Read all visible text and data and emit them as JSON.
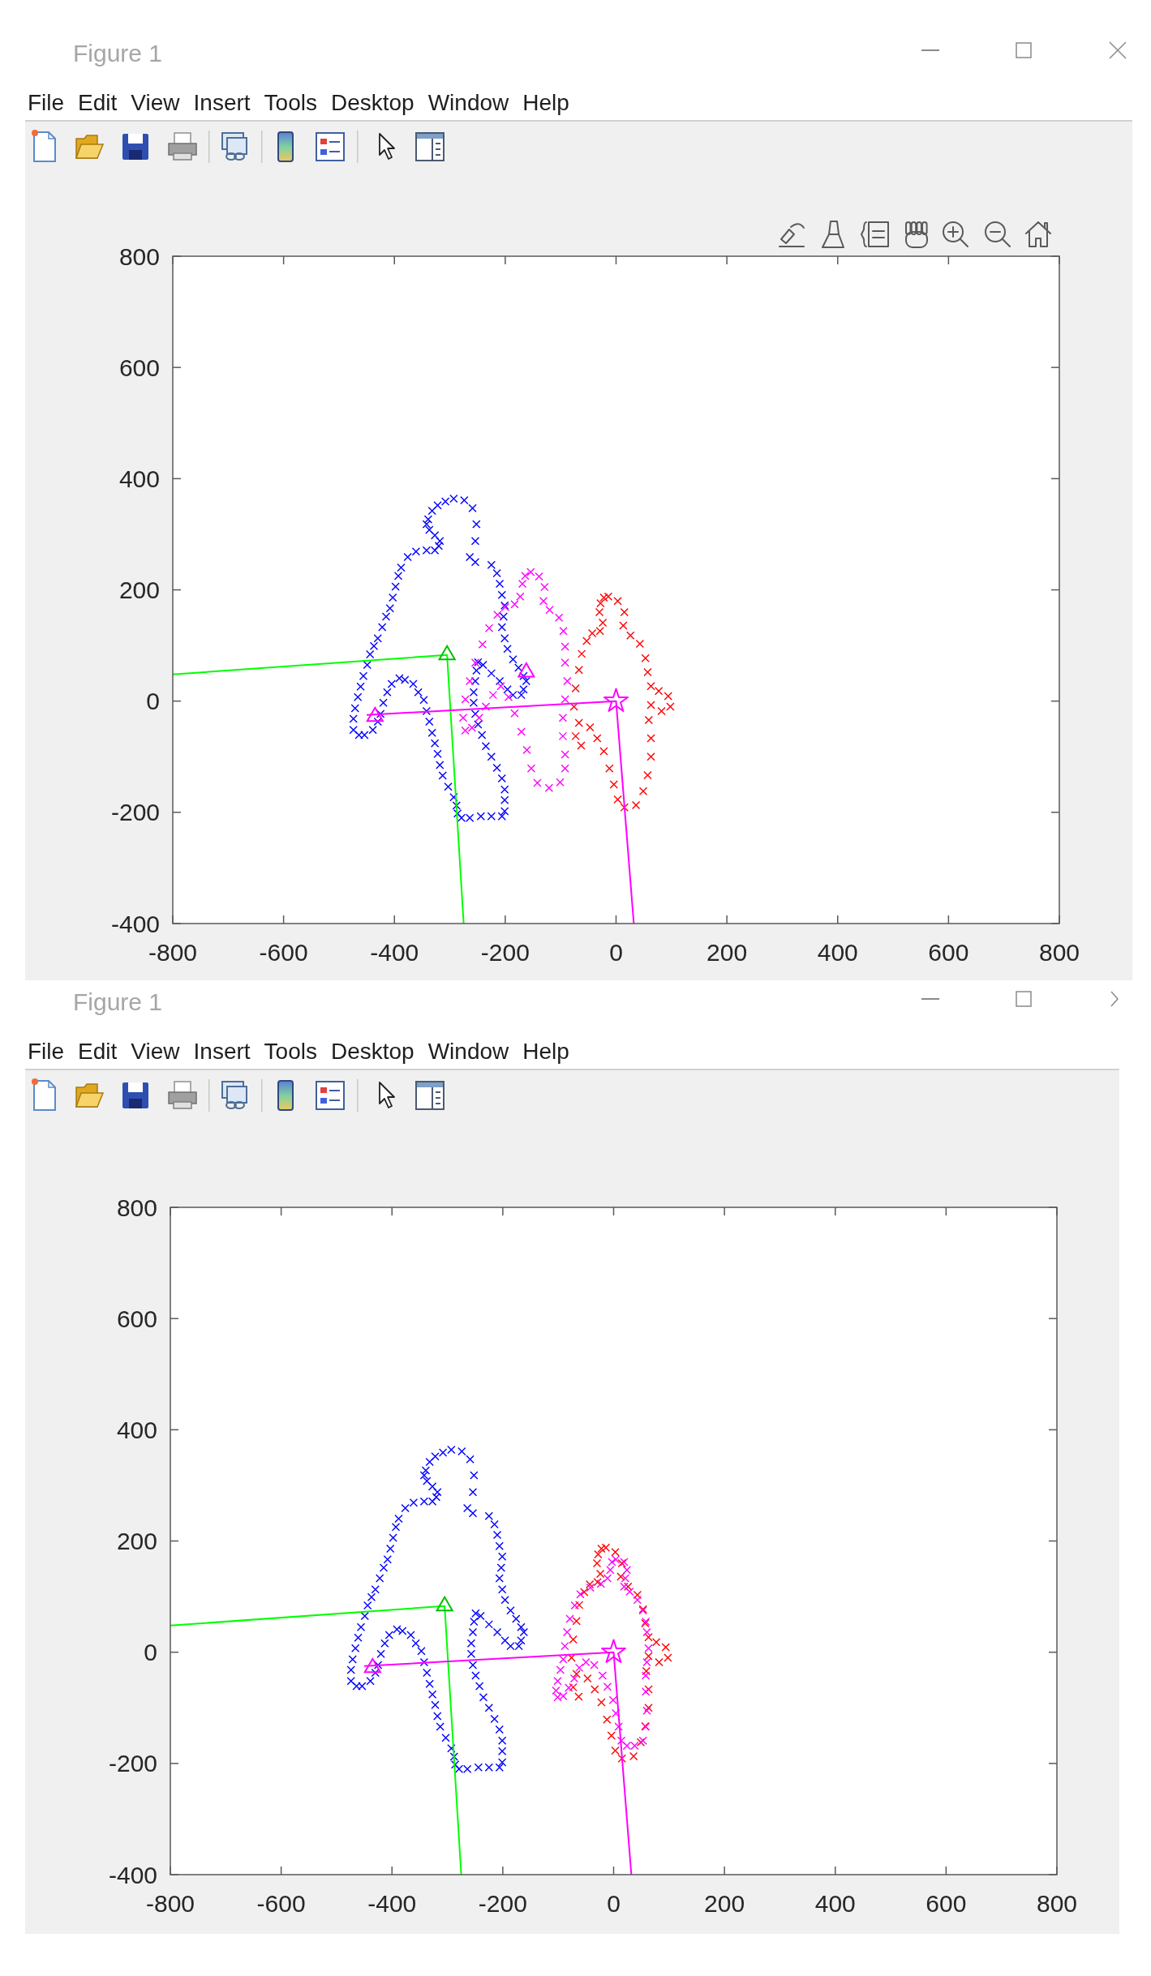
{
  "chart_data": [
    {
      "type": "scatter",
      "title": "Figure 1",
      "annotations": [
        "File",
        "Edit",
        "View",
        "Insert",
        "Tools",
        "Desktop",
        "Window",
        "Help"
      ],
      "xlim": [
        -800,
        800
      ],
      "xticks": [
        -800,
        -600,
        -400,
        -200,
        0,
        200,
        400,
        600,
        800
      ],
      "ylim": [
        -400,
        800
      ],
      "yticks": [
        -400,
        -200,
        0,
        200,
        400,
        600,
        800
      ],
      "marker": "cross",
      "series": [
        {
          "color": "#0000ff",
          "x": [
            -293,
            -274,
            -259,
            -252,
            -254,
            -264,
            -254,
            -225,
            -215,
            -210,
            -206,
            -201,
            -203,
            -206,
            -201,
            -196,
            -186,
            -176,
            -167,
            -162,
            -167,
            -171,
            -186,
            -196,
            -210,
            -225,
            -240,
            -249,
            -252,
            -254,
            -257,
            -257,
            -254,
            -249,
            -242,
            -235,
            -225,
            -215,
            -206,
            -201,
            -201,
            -201,
            -206,
            -225,
            -244,
            -264,
            -279,
            -286,
            -288,
            -293,
            -303,
            -313,
            -318,
            -322,
            -327,
            -332,
            -337,
            -342,
            -347,
            -357,
            -366,
            -381,
            -391,
            -405,
            -413,
            -420,
            -425,
            -430,
            -439,
            -454,
            -464,
            -474,
            -474,
            -471,
            -466,
            -461,
            -456,
            -449,
            -444,
            -437,
            -430,
            -422,
            -415,
            -408,
            -403,
            -398,
            -393,
            -388,
            -376,
            -361,
            -342,
            -327,
            -320,
            -318,
            -327,
            -337,
            -342,
            -339,
            -332,
            -322,
            -308
          ],
          "values": [
            364,
            361,
            347,
            318,
            288,
            259,
            250,
            245,
            230,
            211,
            191,
            172,
            152,
            133,
            113,
            94,
            75,
            60,
            45,
            36,
            21,
            11,
            11,
            21,
            36,
            50,
            65,
            70,
            55,
            36,
            16,
            -3,
            -23,
            -42,
            -61,
            -81,
            -100,
            -120,
            -139,
            -159,
            -178,
            -198,
            -207,
            -207,
            -207,
            -210,
            -210,
            -202,
            -188,
            -173,
            -154,
            -134,
            -115,
            -95,
            -76,
            -57,
            -37,
            -18,
            2,
            16,
            31,
            38,
            41,
            31,
            16,
            -3,
            -23,
            -37,
            -52,
            -61,
            -61,
            -52,
            -32,
            -13,
            7,
            26,
            45,
            65,
            84,
            99,
            113,
            133,
            152,
            167,
            186,
            206,
            225,
            240,
            259,
            269,
            271,
            271,
            279,
            288,
            298,
            308,
            318,
            327,
            342,
            352,
            359
          ]
        },
        {
          "color": "#ff0000",
          "x": [
            -14,
            3,
            15,
            13,
            26,
            43,
            53,
            57,
            63,
            77,
            94,
            98,
            82,
            63,
            59,
            63,
            63,
            57,
            49,
            36,
            15,
            3,
            -4,
            -12,
            -22,
            -34,
            -47,
            -63,
            -73,
            -67,
            -76,
            -73,
            -67,
            -62,
            -53,
            -43,
            -29,
            -24,
            -30,
            -28,
            -22
          ],
          "values": [
            188,
            180,
            160,
            136,
            118,
            103,
            77,
            52,
            27,
            18,
            9,
            -10,
            -18,
            -7,
            -34,
            -67,
            -100,
            -133,
            -162,
            -187,
            -191,
            -177,
            -150,
            -121,
            -90,
            -67,
            -47,
            -80,
            -63,
            -39,
            -10,
            23,
            56,
            85,
            108,
            122,
            126,
            141,
            160,
            176,
            186
          ]
        },
        {
          "color": "#ff00ff",
          "x": [
            -154,
            -139,
            -129,
            -131,
            -120,
            -103,
            -95,
            -92,
            -92,
            -88,
            -92,
            -96,
            -96,
            -92,
            -92,
            -101,
            -121,
            -142,
            -153,
            -161,
            -171,
            -183,
            -194,
            -208,
            -222,
            -235,
            -247,
            -260,
            -272,
            -276,
            -272,
            -264,
            -254,
            -241,
            -229,
            -214,
            -200,
            -183,
            -173,
            -169,
            -164
          ],
          "values": [
            232,
            224,
            205,
            180,
            164,
            150,
            126,
            98,
            69,
            36,
            3,
            -30,
            -63,
            -96,
            -121,
            -146,
            -156,
            -147,
            -121,
            -88,
            -55,
            -22,
            7,
            27,
            11,
            -10,
            -30,
            -48,
            -53,
            -30,
            3,
            36,
            69,
            102,
            131,
            155,
            169,
            174,
            188,
            211,
            225
          ]
        },
        {
          "type": "line",
          "color": "#00ff00",
          "marker": "none",
          "x": [
            -800,
            -305,
            -275
          ],
          "values": [
            48,
            83,
            -400
          ]
        },
        {
          "type": "line",
          "color": "#ff00ff",
          "marker": "none",
          "x": [
            -450,
            0,
            32
          ],
          "values": [
            -25,
            0,
            -400
          ]
        },
        {
          "color": "#00c000",
          "marker": "triangle",
          "x": [
            -305
          ],
          "values": [
            83
          ]
        },
        {
          "color": "#ff00ff",
          "marker": "triangle",
          "x": [
            -435,
            -162
          ],
          "values": [
            -28,
            52
          ]
        },
        {
          "color": "#ff00ff",
          "marker": "star",
          "x": [
            0
          ],
          "values": [
            0
          ]
        }
      ]
    },
    {
      "type": "scatter",
      "title": "Figure 1",
      "annotations": [
        "File",
        "Edit",
        "View",
        "Insert",
        "Tools",
        "Desktop",
        "Window",
        "Help"
      ],
      "xlim": [
        -800,
        800
      ],
      "xticks": [
        -800,
        -600,
        -400,
        -200,
        0,
        200,
        400,
        600,
        800
      ],
      "ylim": [
        -400,
        800
      ],
      "yticks": [
        -400,
        -200,
        0,
        200,
        400,
        600,
        800
      ],
      "marker": "cross",
      "series": [
        {
          "color": "#0000ff",
          "x": [
            -293,
            -274,
            -259,
            -252,
            -254,
            -264,
            -254,
            -225,
            -215,
            -210,
            -206,
            -201,
            -203,
            -206,
            -201,
            -196,
            -186,
            -176,
            -167,
            -162,
            -167,
            -171,
            -186,
            -196,
            -210,
            -225,
            -240,
            -249,
            -252,
            -254,
            -257,
            -257,
            -254,
            -249,
            -242,
            -235,
            -225,
            -215,
            -206,
            -201,
            -201,
            -201,
            -206,
            -225,
            -244,
            -264,
            -279,
            -286,
            -288,
            -293,
            -303,
            -313,
            -318,
            -322,
            -327,
            -332,
            -337,
            -342,
            -347,
            -357,
            -366,
            -381,
            -391,
            -405,
            -413,
            -420,
            -425,
            -430,
            -439,
            -454,
            -464,
            -474,
            -474,
            -471,
            -466,
            -461,
            -456,
            -449,
            -444,
            -437,
            -430,
            -422,
            -415,
            -408,
            -403,
            -398,
            -393,
            -388,
            -376,
            -361,
            -342,
            -327,
            -320,
            -318,
            -327,
            -337,
            -342,
            -339,
            -332,
            -322,
            -308
          ],
          "values": [
            364,
            361,
            347,
            318,
            288,
            259,
            250,
            245,
            230,
            211,
            191,
            172,
            152,
            133,
            113,
            94,
            75,
            60,
            45,
            36,
            21,
            11,
            11,
            21,
            36,
            50,
            65,
            70,
            55,
            36,
            16,
            -3,
            -23,
            -42,
            -61,
            -81,
            -100,
            -120,
            -139,
            -159,
            -178,
            -198,
            -207,
            -207,
            -207,
            -210,
            -210,
            -202,
            -188,
            -173,
            -154,
            -134,
            -115,
            -95,
            -76,
            -57,
            -37,
            -18,
            2,
            16,
            31,
            38,
            41,
            31,
            16,
            -3,
            -23,
            -37,
            -52,
            -61,
            -61,
            -52,
            -32,
            -13,
            7,
            26,
            45,
            65,
            84,
            99,
            113,
            133,
            152,
            167,
            186,
            206,
            225,
            240,
            259,
            269,
            271,
            271,
            279,
            288,
            298,
            308,
            318,
            327,
            342,
            352,
            359
          ]
        },
        {
          "color": "#ff0000",
          "x": [
            -14,
            3,
            15,
            13,
            26,
            43,
            53,
            57,
            63,
            77,
            94,
            98,
            82,
            63,
            59,
            63,
            63,
            57,
            49,
            36,
            15,
            3,
            -4,
            -12,
            -22,
            -34,
            -47,
            -63,
            -73,
            -67,
            -76,
            -73,
            -67,
            -62,
            -53,
            -43,
            -29,
            -24,
            -30,
            -28,
            -22
          ],
          "values": [
            188,
            180,
            160,
            136,
            118,
            103,
            77,
            52,
            27,
            18,
            9,
            -10,
            -18,
            -7,
            -34,
            -67,
            -100,
            -133,
            -162,
            -187,
            -191,
            -177,
            -150,
            -121,
            -90,
            -67,
            -47,
            -80,
            -63,
            -39,
            -10,
            23,
            56,
            85,
            108,
            122,
            126,
            141,
            160,
            176,
            186
          ]
        },
        {
          "color": "#ff00ff",
          "x": [
            4,
            19,
            24,
            21,
            19,
            29,
            43,
            53,
            58,
            60,
            63,
            60,
            58,
            58,
            60,
            58,
            53,
            38,
            24,
            14,
            9,
            4,
            -1,
            -11,
            -20,
            -35,
            -50,
            -62,
            -71,
            -81,
            -91,
            -101,
            -104,
            -101,
            -96,
            -91,
            -88,
            -84,
            -79,
            -70,
            -60,
            -42,
            -23,
            -11,
            -6,
            -3
          ],
          "values": [
            167,
            162,
            148,
            133,
            118,
            109,
            94,
            75,
            55,
            36,
            7,
            -18,
            -42,
            -71,
            -105,
            -134,
            -159,
            -168,
            -168,
            -159,
            -134,
            -110,
            -86,
            -62,
            -42,
            -23,
            -18,
            -28,
            -47,
            -64,
            -79,
            -81,
            -69,
            -52,
            -32,
            -13,
            11,
            36,
            60,
            84,
            104,
            116,
            123,
            133,
            148,
            162
          ]
        },
        {
          "type": "line",
          "color": "#00ff00",
          "marker": "none",
          "x": [
            -800,
            -305,
            -275
          ],
          "values": [
            48,
            83,
            -400
          ]
        },
        {
          "type": "line",
          "color": "#ff00ff",
          "marker": "none",
          "x": [
            -450,
            0,
            32
          ],
          "values": [
            -25,
            0,
            -400
          ]
        },
        {
          "color": "#00c000",
          "marker": "triangle",
          "x": [
            -305
          ],
          "values": [
            83
          ]
        },
        {
          "color": "#ff00ff",
          "marker": "triangle",
          "x": [
            -435
          ],
          "values": [
            -28
          ]
        },
        {
          "color": "#ff00ff",
          "marker": "star",
          "x": [
            0
          ],
          "values": [
            0
          ]
        }
      ]
    }
  ]
}
